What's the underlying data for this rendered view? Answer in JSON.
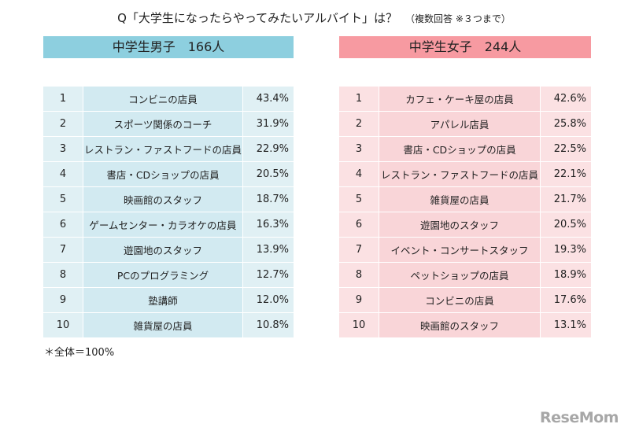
{
  "title": {
    "question": "Q「大学生になったらやってみたいアルバイト」は？",
    "note": "（複数回答 ※３つまで）"
  },
  "colors": {
    "boys_header": "#8dcfdf",
    "girls_header": "#f79aa1",
    "boys_cell": "#d2eaf1",
    "girls_cell": "#f9d5d8"
  },
  "footnote": "＊全体＝100%",
  "logo": "ReseMom",
  "chart_data": [
    {
      "type": "table",
      "title": "中学生男子　166人",
      "columns": [
        "rank",
        "job",
        "percent"
      ],
      "rows": [
        {
          "rank": "1",
          "job": "コンビニの店員",
          "pct": "43.4%"
        },
        {
          "rank": "2",
          "job": "スポーツ関係のコーチ",
          "pct": "31.9%"
        },
        {
          "rank": "3",
          "job": "レストラン・ファストフードの店員",
          "pct": "22.9%"
        },
        {
          "rank": "4",
          "job": "書店・CDショップの店員",
          "pct": "20.5%"
        },
        {
          "rank": "5",
          "job": "映画館のスタッフ",
          "pct": "18.7%"
        },
        {
          "rank": "6",
          "job": "ゲームセンター・カラオケの店員",
          "pct": "16.3%"
        },
        {
          "rank": "7",
          "job": "遊園地のスタッフ",
          "pct": "13.9%"
        },
        {
          "rank": "8",
          "job": "PCのプログラミング",
          "pct": "12.7%"
        },
        {
          "rank": "9",
          "job": "塾講師",
          "pct": "12.0%"
        },
        {
          "rank": "10",
          "job": "雑貨屋の店員",
          "pct": "10.8%"
        }
      ]
    },
    {
      "type": "table",
      "title": "中学生女子　244人",
      "columns": [
        "rank",
        "job",
        "percent"
      ],
      "rows": [
        {
          "rank": "1",
          "job": "カフェ・ケーキ屋の店員",
          "pct": "42.6%"
        },
        {
          "rank": "2",
          "job": "アパレル店員",
          "pct": "25.8%"
        },
        {
          "rank": "3",
          "job": "書店・CDショップの店員",
          "pct": "22.5%"
        },
        {
          "rank": "4",
          "job": "レストラン・ファストフードの店員",
          "pct": "22.1%"
        },
        {
          "rank": "5",
          "job": "雑貨屋の店員",
          "pct": "21.7%"
        },
        {
          "rank": "6",
          "job": "遊園地のスタッフ",
          "pct": "20.5%"
        },
        {
          "rank": "7",
          "job": "イベント・コンサートスタッフ",
          "pct": "19.3%"
        },
        {
          "rank": "8",
          "job": "ペットショップの店員",
          "pct": "18.9%"
        },
        {
          "rank": "9",
          "job": "コンビニの店員",
          "pct": "17.6%"
        },
        {
          "rank": "10",
          "job": "映画館のスタッフ",
          "pct": "13.1%"
        }
      ]
    }
  ]
}
